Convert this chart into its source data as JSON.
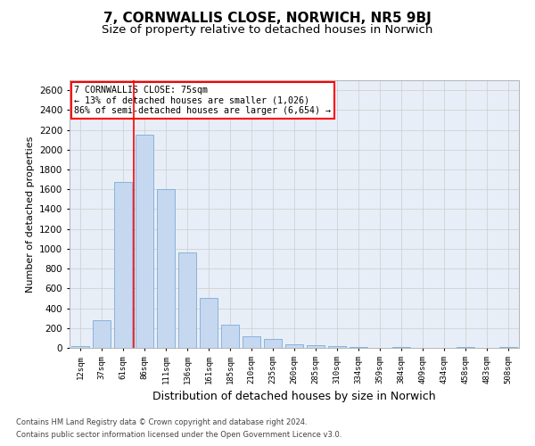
{
  "title1": "7, CORNWALLIS CLOSE, NORWICH, NR5 9BJ",
  "title2": "Size of property relative to detached houses in Norwich",
  "xlabel": "Distribution of detached houses by size in Norwich",
  "ylabel": "Number of detached properties",
  "categories": [
    "12sqm",
    "37sqm",
    "61sqm",
    "86sqm",
    "111sqm",
    "136sqm",
    "161sqm",
    "185sqm",
    "210sqm",
    "235sqm",
    "260sqm",
    "285sqm",
    "310sqm",
    "334sqm",
    "359sqm",
    "384sqm",
    "409sqm",
    "434sqm",
    "458sqm",
    "483sqm",
    "508sqm"
  ],
  "values": [
    20,
    280,
    1670,
    2150,
    1600,
    960,
    500,
    235,
    115,
    90,
    35,
    30,
    20,
    10,
    0,
    10,
    0,
    0,
    10,
    0,
    5
  ],
  "bar_color": "#c5d8f0",
  "bar_edge_color": "#7aadd4",
  "vline_x_index": 3,
  "vline_color": "red",
  "annotation_text": "7 CORNWALLIS CLOSE: 75sqm\n← 13% of detached houses are smaller (1,026)\n86% of semi-detached houses are larger (6,654) →",
  "annotation_box_color": "white",
  "annotation_box_edge": "red",
  "ylim": [
    0,
    2700
  ],
  "yticks": [
    0,
    200,
    400,
    600,
    800,
    1000,
    1200,
    1400,
    1600,
    1800,
    2000,
    2200,
    2400,
    2600
  ],
  "grid_color": "#cccccc",
  "bg_color": "#e8eef7",
  "footer1": "Contains HM Land Registry data © Crown copyright and database right 2024.",
  "footer2": "Contains public sector information licensed under the Open Government Licence v3.0.",
  "title1_fontsize": 11,
  "title2_fontsize": 9.5,
  "xlabel_fontsize": 9,
  "ylabel_fontsize": 8
}
